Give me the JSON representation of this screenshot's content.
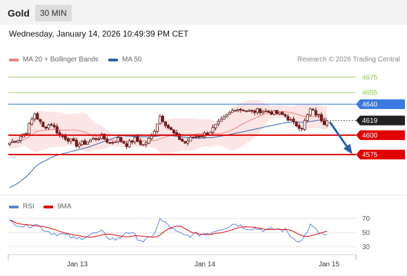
{
  "header": {
    "title": "Gold",
    "timeframe": "30 MIN",
    "datetime": "Wednesday, January 14, 2026 10:49:39 PM CET"
  },
  "legend": {
    "bollinger_label": "MA 20 + Bollinger Bands",
    "ma50_label": "MA 50",
    "credit": "Research © 2026 Trading Central",
    "rsi_label": "RSI",
    "rsi_ma_label": "9MA"
  },
  "colors": {
    "bollinger": "#f08080",
    "band_fill": "#fbe0e0",
    "ma50": "#2a5fa8",
    "up_candle": "#ffffff",
    "down_candle": "#8b1a1a",
    "support": "#e00000",
    "pivot": "#3b7be0",
    "resistance": "#8dc14a",
    "current": "#222222",
    "arrow": "#2a5fa8",
    "rsi": "#5c82d8",
    "rsi_ma": "#e00000"
  },
  "chart_data": [
    {
      "type": "candlestick",
      "ylim": [
        4525,
        4690
      ],
      "x_labels": [
        "Jan 13",
        "Jan 14",
        "Jan 15"
      ],
      "levels": [
        {
          "value": 4675,
          "label": "4675",
          "kind": "resistance"
        },
        {
          "value": 4655,
          "label": "4655",
          "kind": "resistance"
        },
        {
          "value": 4640,
          "label": "4640",
          "kind": "pivot"
        },
        {
          "value": 4619,
          "label": "4619",
          "kind": "current"
        },
        {
          "value": 4600,
          "label": "4600",
          "kind": "support"
        },
        {
          "value": 4575,
          "label": "4575",
          "kind": "support"
        }
      ],
      "forecast": {
        "from": 4619,
        "to": 4575,
        "direction": "down"
      },
      "close_anchors": [
        4590,
        4595,
        4605,
        4628,
        4610,
        4615,
        4600,
        4595,
        4588,
        4590,
        4595,
        4598,
        4590,
        4595,
        4588,
        4595,
        4587,
        4598,
        4625,
        4610,
        4598,
        4590,
        4598,
        4600,
        4605,
        4615,
        4625,
        4635,
        4633,
        4630,
        4632,
        4630,
        4628,
        4625,
        4615,
        4610,
        4633,
        4625,
        4612
      ]
    },
    {
      "type": "line",
      "name": "RSI",
      "ylim": [
        20,
        80
      ],
      "y_ticks": [
        70,
        50,
        30
      ],
      "rsi_anchors": [
        65,
        62,
        58,
        63,
        55,
        50,
        48,
        45,
        40,
        45,
        48,
        50,
        42,
        40,
        52,
        45,
        38,
        42,
        68,
        60,
        50,
        45,
        47,
        48,
        50,
        55,
        58,
        63,
        58,
        56,
        55,
        53,
        55,
        53,
        42,
        38,
        60,
        50,
        45
      ]
    }
  ]
}
